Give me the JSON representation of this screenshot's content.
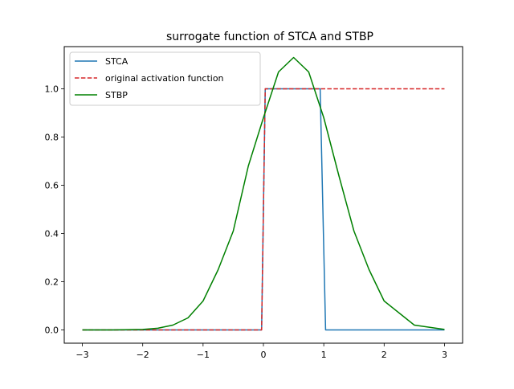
{
  "chart_data": {
    "type": "line",
    "title": "surrogate function of STCA and STBP",
    "xlabel": "",
    "ylabel": "",
    "xlim": [
      -3.3,
      3.3
    ],
    "ylim": [
      -0.055,
      1.175
    ],
    "x_ticks": [
      -3,
      -2,
      -1,
      0,
      1,
      2,
      3
    ],
    "x_tick_labels": [
      "−3",
      "−2",
      "−1",
      "0",
      "1",
      "2",
      "3"
    ],
    "y_ticks": [
      0.0,
      0.2,
      0.4,
      0.6,
      0.8,
      1.0
    ],
    "y_tick_labels": [
      "0.0",
      "0.2",
      "0.4",
      "0.6",
      "0.8",
      "1.0"
    ],
    "grid": false,
    "legend_position": "top-left",
    "series": [
      {
        "name": "STCA",
        "color": "#1f77b4",
        "style": "solid",
        "x": [
          -3.0,
          -0.03,
          0.03,
          0.94,
          1.03,
          3.0
        ],
        "y": [
          0.0,
          0.0,
          1.0,
          1.0,
          0.0,
          0.0
        ]
      },
      {
        "name": "original activation function",
        "color": "#d62728",
        "style": "dashed",
        "x": [
          -3.0,
          -0.03,
          0.03,
          3.0
        ],
        "y": [
          0.0,
          0.0,
          1.0,
          1.0
        ]
      },
      {
        "name": "STBP",
        "color": "#008000",
        "style": "solid",
        "x": [
          -3.0,
          -2.5,
          -2.0,
          -1.75,
          -1.5,
          -1.25,
          -1.0,
          -0.75,
          -0.5,
          -0.25,
          0.0,
          0.25,
          0.5,
          0.75,
          1.0,
          1.25,
          1.5,
          1.75,
          2.0,
          2.5,
          3.0
        ],
        "y": [
          0.0,
          0.0,
          0.002,
          0.007,
          0.02,
          0.05,
          0.12,
          0.25,
          0.41,
          0.68,
          0.88,
          1.07,
          1.13,
          1.07,
          0.88,
          0.64,
          0.41,
          0.25,
          0.12,
          0.02,
          0.002
        ]
      }
    ]
  }
}
